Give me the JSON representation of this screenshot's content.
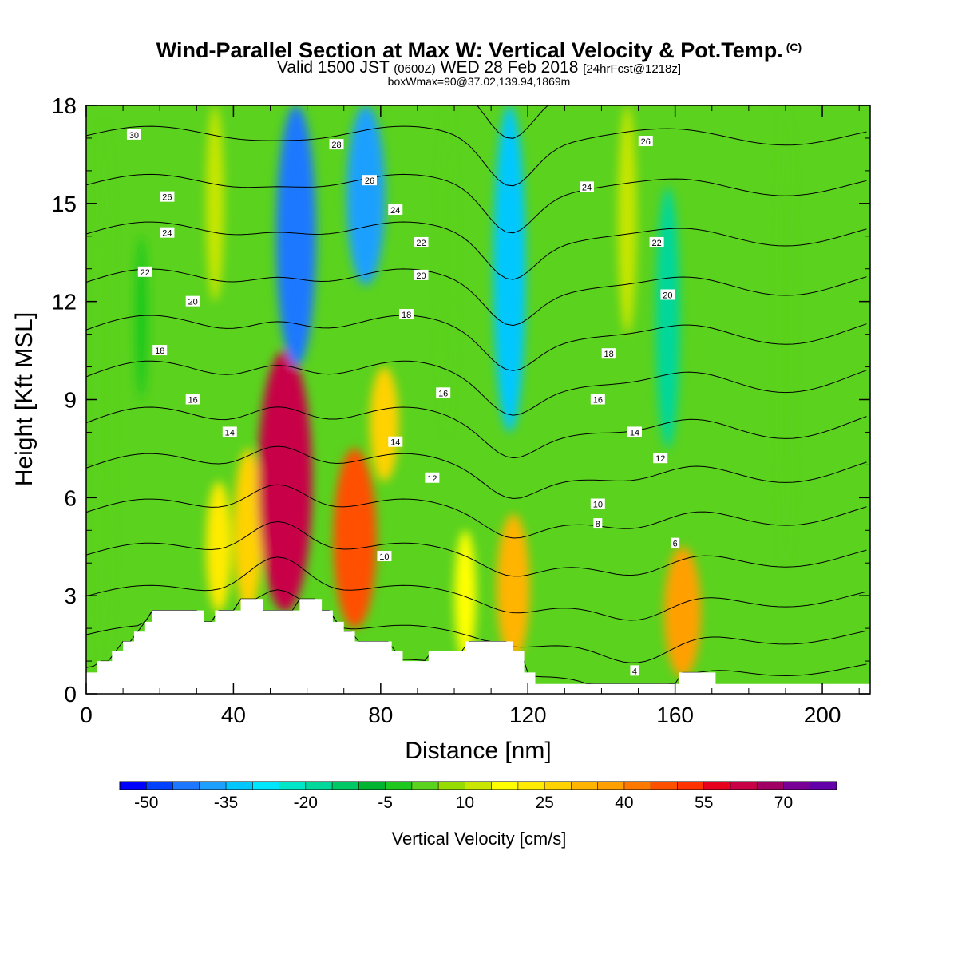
{
  "header": {
    "title": "Wind-Parallel Section at Max W: Vertical Velocity & Pot.Temp.",
    "copyright": "(C)",
    "subtitle_main": "Valid 1500 JST",
    "subtitle_utc": "(0600Z)",
    "subtitle_date": "WED 28 Feb 2018",
    "subtitle_fcst": "[24hrFcst@1218z]",
    "subtitle_box": "boxWmax=90@37.02,139.94,1869m"
  },
  "chart_data": {
    "type": "heatmap",
    "xlabel": "Distance [nm]",
    "ylabel": "Height [Kft MSL]",
    "xlim": [
      0,
      213
    ],
    "ylim": [
      0,
      18
    ],
    "x_ticks": [
      0,
      40,
      80,
      120,
      160,
      200
    ],
    "y_ticks": [
      0,
      3,
      6,
      9,
      12,
      15,
      18
    ],
    "colorbar": {
      "label": "Vertical Velocity [cm/s]",
      "tick_labels": [
        "-50",
        "-35",
        "-20",
        "-5",
        "10",
        "25",
        "40",
        "55",
        "70"
      ],
      "levels": [
        -50,
        -45,
        -40,
        -35,
        -30,
        -25,
        -20,
        -15,
        -10,
        -5,
        0,
        5,
        10,
        15,
        20,
        25,
        30,
        35,
        40,
        45,
        50,
        55,
        60,
        65,
        70,
        75
      ],
      "colors": [
        "#0000ff",
        "#0040ff",
        "#1e78ff",
        "#1ea0ff",
        "#00c8ff",
        "#00e6ff",
        "#00e6c8",
        "#00d79b",
        "#00c864",
        "#00b432",
        "#1ec81e",
        "#5ad21e",
        "#96dc00",
        "#c8e600",
        "#ffff00",
        "#ffeb00",
        "#ffd200",
        "#ffb400",
        "#ffa000",
        "#ff7800",
        "#ff5000",
        "#ff3200",
        "#e6001e",
        "#c80046",
        "#a00064",
        "#780096",
        "#6400aa"
      ]
    },
    "w_cells": [
      {
        "x": 5,
        "y0": 0.5,
        "y1": 17.5,
        "w": 3
      },
      {
        "x": 15,
        "y0": 9,
        "y1": 14,
        "w": -2
      },
      {
        "x": 35,
        "y0": 12,
        "y1": 18,
        "w": 12
      },
      {
        "x": 36,
        "y0": 2.5,
        "y1": 6.5,
        "w": 22
      },
      {
        "x": 44,
        "y0": 2.5,
        "y1": 7.5,
        "w": 27
      },
      {
        "x": 54,
        "y0": 2.5,
        "y1": 10.5,
        "w": 63
      },
      {
        "x": 57,
        "y0": 10,
        "y1": 18,
        "w": -42
      },
      {
        "x": 73,
        "y0": 2,
        "y1": 7.5,
        "w": 47
      },
      {
        "x": 81,
        "y0": 6.5,
        "y1": 10,
        "w": 27
      },
      {
        "x": 76,
        "y0": 12.5,
        "y1": 18,
        "w": -40
      },
      {
        "x": 98,
        "y0": 8,
        "y1": 18,
        "w": 2
      },
      {
        "x": 103,
        "y0": 1,
        "y1": 5,
        "w": 17
      },
      {
        "x": 115,
        "y0": 8,
        "y1": 18,
        "w": -32
      },
      {
        "x": 116,
        "y0": 1,
        "y1": 5.5,
        "w": 33
      },
      {
        "x": 147,
        "y0": 11,
        "y1": 18,
        "w": 13
      },
      {
        "x": 158,
        "y0": 7.5,
        "y1": 15.5,
        "w": -20
      },
      {
        "x": 162,
        "y0": 0.5,
        "y1": 4.5,
        "w": 38
      },
      {
        "x": 190,
        "y0": 4,
        "y1": 18,
        "w": 3
      }
    ],
    "theta_isolines": [
      4,
      6,
      8,
      10,
      12,
      14,
      16,
      18,
      20,
      22,
      24,
      26,
      28,
      30
    ],
    "theta_labels": [
      {
        "text": "30",
        "x": 13,
        "y": 17.1
      },
      {
        "text": "26",
        "x": 22,
        "y": 15.2
      },
      {
        "text": "24",
        "x": 22,
        "y": 14.1
      },
      {
        "text": "22",
        "x": 16,
        "y": 12.9
      },
      {
        "text": "20",
        "x": 29,
        "y": 12.0
      },
      {
        "text": "18",
        "x": 20,
        "y": 10.5
      },
      {
        "text": "16",
        "x": 29,
        "y": 9.0
      },
      {
        "text": "14",
        "x": 39,
        "y": 8.0
      },
      {
        "text": "28",
        "x": 68,
        "y": 16.8
      },
      {
        "text": "26",
        "x": 77,
        "y": 15.7
      },
      {
        "text": "24",
        "x": 84,
        "y": 14.8
      },
      {
        "text": "22",
        "x": 91,
        "y": 13.8
      },
      {
        "text": "20",
        "x": 91,
        "y": 12.8
      },
      {
        "text": "18",
        "x": 87,
        "y": 11.6
      },
      {
        "text": "16",
        "x": 97,
        "y": 9.2
      },
      {
        "text": "14",
        "x": 84,
        "y": 7.7
      },
      {
        "text": "12",
        "x": 94,
        "y": 6.6
      },
      {
        "text": "10",
        "x": 81,
        "y": 4.2
      },
      {
        "text": "26",
        "x": 152,
        "y": 16.9
      },
      {
        "text": "24",
        "x": 136,
        "y": 15.5
      },
      {
        "text": "22",
        "x": 155,
        "y": 13.8
      },
      {
        "text": "20",
        "x": 158,
        "y": 12.2
      },
      {
        "text": "18",
        "x": 142,
        "y": 10.4
      },
      {
        "text": "16",
        "x": 139,
        "y": 9.0
      },
      {
        "text": "14",
        "x": 149,
        "y": 8.0
      },
      {
        "text": "12",
        "x": 156,
        "y": 7.2
      },
      {
        "text": "10",
        "x": 139,
        "y": 5.8
      },
      {
        "text": "8",
        "x": 139,
        "y": 5.2
      },
      {
        "text": "6",
        "x": 160,
        "y": 4.6
      },
      {
        "text": "4",
        "x": 149,
        "y": 0.7
      }
    ],
    "terrain_profile": [
      {
        "x": 0,
        "y": 0.65
      },
      {
        "x": 3,
        "y": 0.65
      },
      {
        "x": 3,
        "y": 1.0
      },
      {
        "x": 7,
        "y": 1.0
      },
      {
        "x": 7,
        "y": 1.3
      },
      {
        "x": 10,
        "y": 1.3
      },
      {
        "x": 10,
        "y": 1.6
      },
      {
        "x": 13,
        "y": 1.6
      },
      {
        "x": 13,
        "y": 1.9
      },
      {
        "x": 16,
        "y": 1.9
      },
      {
        "x": 16,
        "y": 2.2
      },
      {
        "x": 18,
        "y": 2.2
      },
      {
        "x": 18,
        "y": 2.55
      },
      {
        "x": 32,
        "y": 2.55
      },
      {
        "x": 32,
        "y": 2.2
      },
      {
        "x": 35,
        "y": 2.2
      },
      {
        "x": 35,
        "y": 2.55
      },
      {
        "x": 42,
        "y": 2.55
      },
      {
        "x": 42,
        "y": 2.9
      },
      {
        "x": 48,
        "y": 2.9
      },
      {
        "x": 48,
        "y": 2.55
      },
      {
        "x": 58,
        "y": 2.55
      },
      {
        "x": 58,
        "y": 2.9
      },
      {
        "x": 64,
        "y": 2.9
      },
      {
        "x": 64,
        "y": 2.55
      },
      {
        "x": 67,
        "y": 2.55
      },
      {
        "x": 67,
        "y": 2.2
      },
      {
        "x": 70,
        "y": 2.2
      },
      {
        "x": 70,
        "y": 1.9
      },
      {
        "x": 73,
        "y": 1.9
      },
      {
        "x": 73,
        "y": 1.6
      },
      {
        "x": 83,
        "y": 1.6
      },
      {
        "x": 83,
        "y": 1.3
      },
      {
        "x": 86,
        "y": 1.3
      },
      {
        "x": 86,
        "y": 1.0
      },
      {
        "x": 93,
        "y": 1.0
      },
      {
        "x": 93,
        "y": 1.3
      },
      {
        "x": 103,
        "y": 1.3
      },
      {
        "x": 103,
        "y": 1.6
      },
      {
        "x": 116,
        "y": 1.6
      },
      {
        "x": 116,
        "y": 1.3
      },
      {
        "x": 119,
        "y": 1.3
      },
      {
        "x": 119,
        "y": 0.65
      },
      {
        "x": 122,
        "y": 0.65
      },
      {
        "x": 122,
        "y": 0.3
      },
      {
        "x": 161,
        "y": 0.3
      },
      {
        "x": 161,
        "y": 0.65
      },
      {
        "x": 171,
        "y": 0.65
      },
      {
        "x": 171,
        "y": 0.3
      },
      {
        "x": 213,
        "y": 0.3
      }
    ]
  }
}
